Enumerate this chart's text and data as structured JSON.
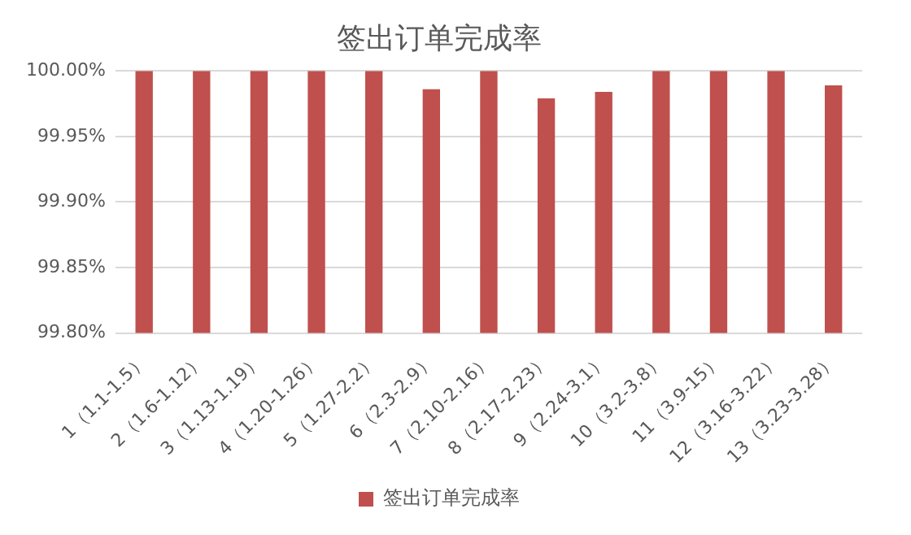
{
  "chart_data": {
    "type": "bar",
    "title": "签出订单完成率",
    "categories": [
      "1（1.1-1.5）",
      "2（1.6-1.12）",
      "3（1.13-1.19）",
      "4（1.20-1.26）",
      "5（1.27-2.2）",
      "6（2.3-2.9）",
      "7（2.10-2.16）",
      "8（2.17-2.23）",
      "9（2.24-3.1）",
      "10（3.2-3.8）",
      "11（3.9-15）",
      "12（3.16-3.22）",
      "13（3.23-3.28）"
    ],
    "series": [
      {
        "name": "签出订单完成率",
        "color": "#c0504d",
        "values": [
          100,
          100,
          100,
          100,
          100,
          99.986,
          100,
          99.979,
          99.984,
          100,
          100,
          100,
          99.989
        ]
      }
    ],
    "ylim": [
      99.8,
      100
    ],
    "yticks": [
      {
        "value": 99.8,
        "label": "99.80%"
      },
      {
        "value": 99.85,
        "label": "99.85%"
      },
      {
        "value": 99.9,
        "label": "99.90%"
      },
      {
        "value": 99.95,
        "label": "99.95%"
      },
      {
        "value": 100,
        "label": "100.00%"
      }
    ],
    "grid": "y",
    "legend": "bottom"
  }
}
